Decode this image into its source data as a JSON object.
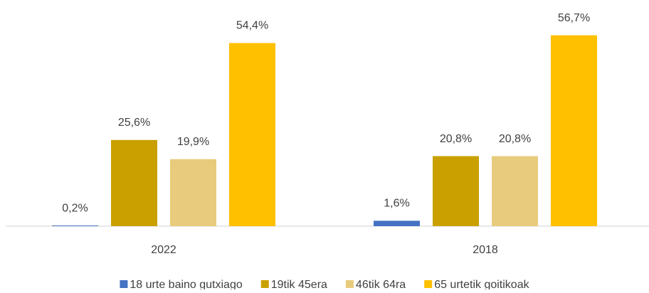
{
  "chart_data": {
    "type": "bar",
    "categories": [
      "2022",
      "2018"
    ],
    "series": [
      {
        "name": "18 urte baino gutxiago",
        "color": "#4472c4",
        "values": [
          0.2,
          1.6
        ],
        "value_labels": [
          "0,2%",
          "1,6%"
        ]
      },
      {
        "name": "19tik 45era",
        "color": "#c9a000",
        "values": [
          25.6,
          20.8
        ],
        "value_labels": [
          "25,6%",
          "20,8%"
        ]
      },
      {
        "name": "46tik 64ra",
        "color": "#e8cb7c",
        "values": [
          19.9,
          20.8
        ],
        "value_labels": [
          "19,9%",
          "20,8%"
        ]
      },
      {
        "name": "65 urtetik goitikoak",
        "color": "#ffc000",
        "values": [
          54.4,
          56.7
        ],
        "value_labels": [
          "54,4%",
          "56,7%"
        ]
      }
    ],
    "ylim": [
      0,
      60
    ],
    "legend": "bottom"
  }
}
